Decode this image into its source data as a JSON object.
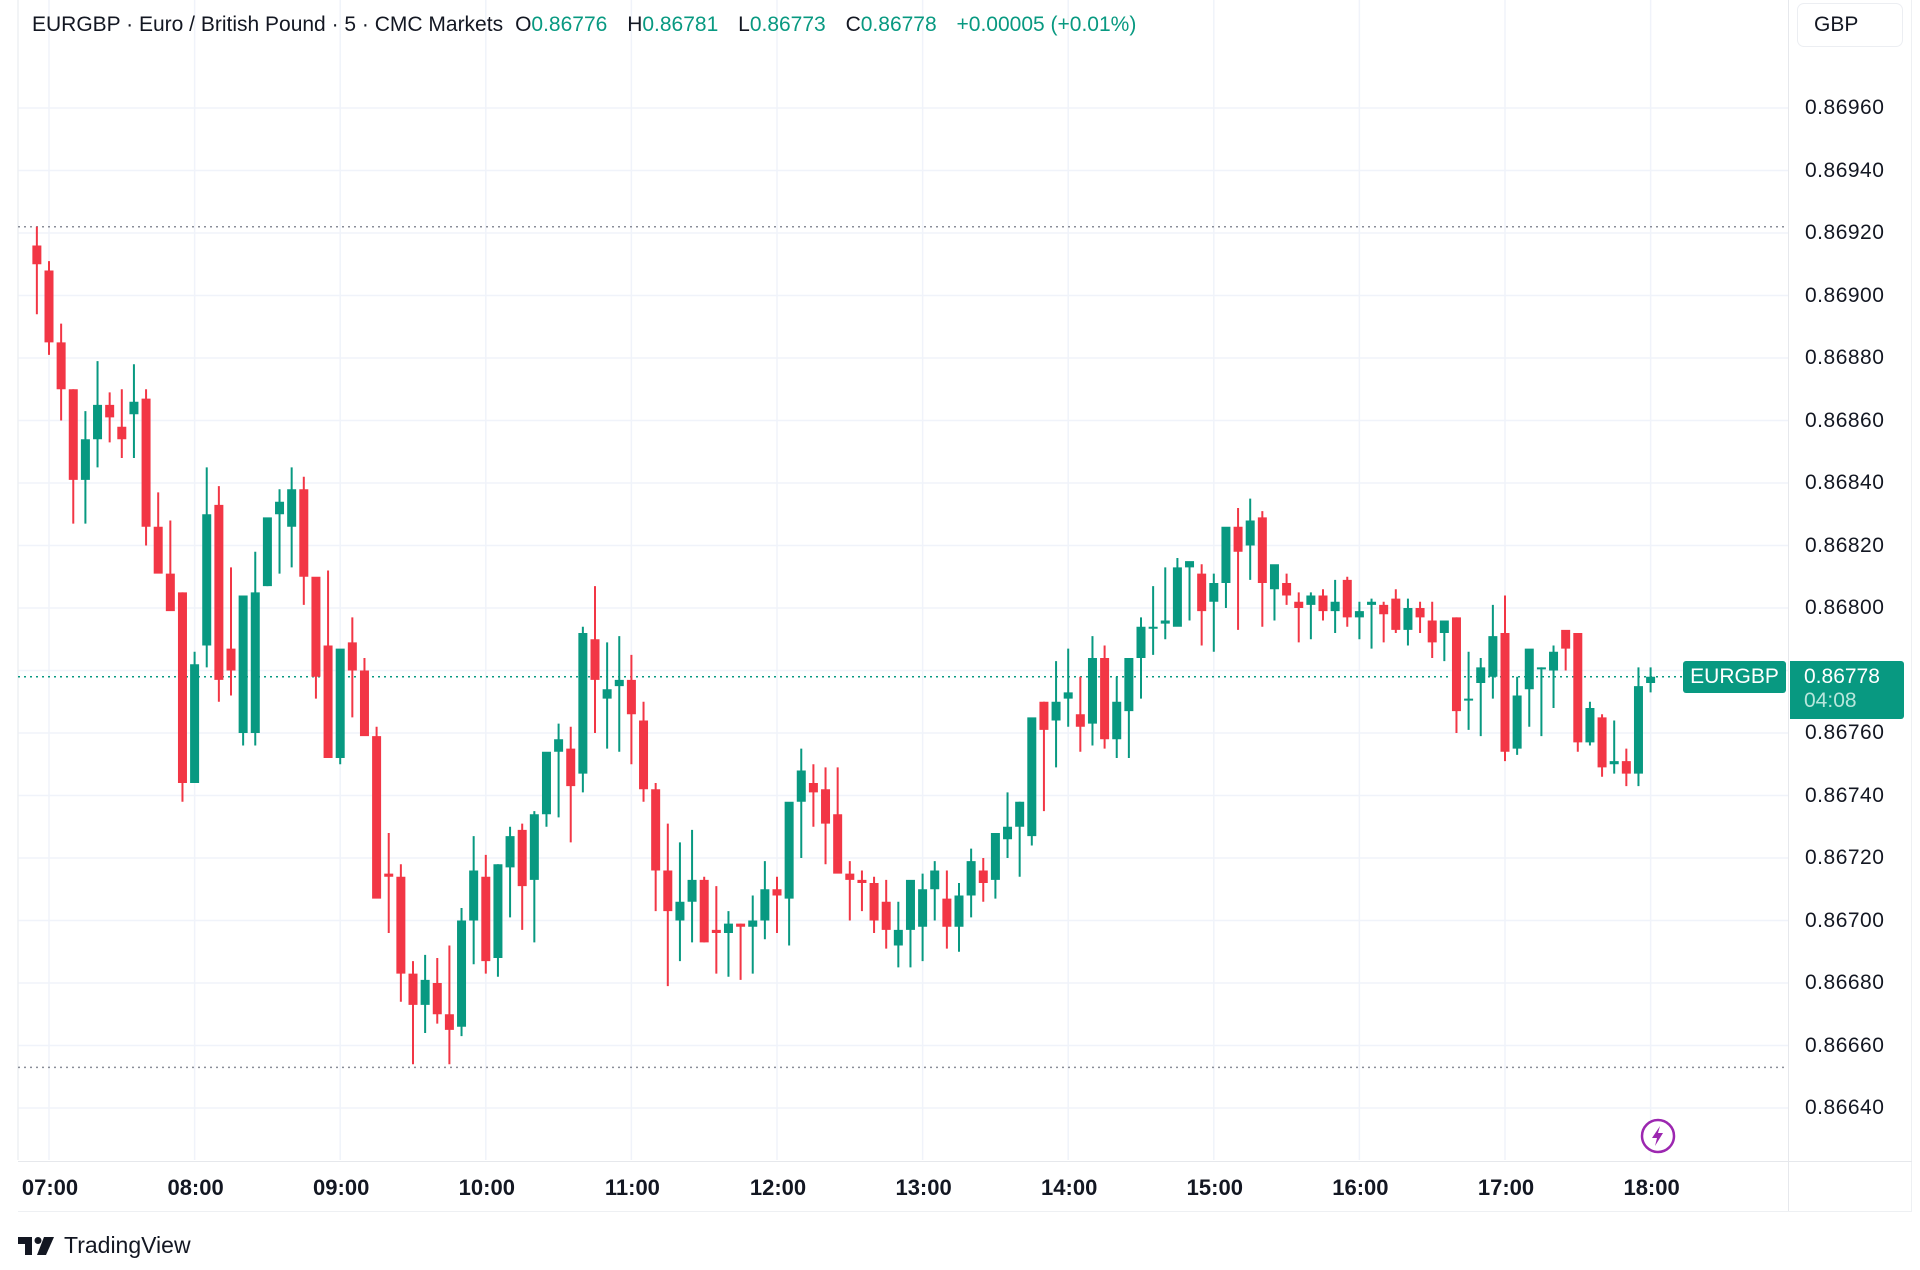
{
  "header": {
    "symbol_line": "EURGBP · Euro / British Pound · 5 · CMC Markets",
    "open_label": "O",
    "open": "0.86776",
    "high_label": "H",
    "high": "0.86781",
    "low_label": "L",
    "low": "0.86773",
    "close_label": "C",
    "close": "0.86778",
    "change": "+0.00005 (+0.01%)"
  },
  "currency_button": "GBP",
  "last_price_tag": {
    "symbol": "EURGBP",
    "price": "0.86778",
    "countdown": "04:08"
  },
  "branding": "TradingView",
  "colors": {
    "up": "#089981",
    "down": "#f23645",
    "grid": "#f0f3fa",
    "text": "#131722",
    "bolt": "#9c27b0"
  },
  "chart_data": {
    "type": "candlestick",
    "title": "EURGBP · Euro / British Pound · 5 · CMC Markets",
    "interval": "5 min",
    "xlabel": "",
    "ylabel": "GBP",
    "ylim": [
      0.8663,
      0.86975
    ],
    "y_ticks": [
      "0.86960",
      "0.86940",
      "0.86920",
      "0.86900",
      "0.86880",
      "0.86860",
      "0.86840",
      "0.86820",
      "0.86800",
      "0.86780",
      "0.86760",
      "0.86740",
      "0.86720",
      "0.86700",
      "0.86680",
      "0.86660",
      "0.86640"
    ],
    "x_ticks": [
      "07:00",
      "08:00",
      "09:00",
      "10:00",
      "11:00",
      "12:00",
      "13:00",
      "14:00",
      "15:00",
      "16:00",
      "17:00",
      "18:00"
    ],
    "grid": true,
    "session_high_line": 0.86922,
    "session_low_line": 0.86653,
    "last_price_line": 0.86778,
    "start_time": "06:55",
    "candles_ohlc": [
      [
        0.86916,
        0.86922,
        0.86894,
        0.8691
      ],
      [
        0.86908,
        0.86911,
        0.86881,
        0.86885
      ],
      [
        0.86885,
        0.86891,
        0.8686,
        0.8687
      ],
      [
        0.8687,
        0.8687,
        0.86827,
        0.86841
      ],
      [
        0.86841,
        0.86863,
        0.86827,
        0.86854
      ],
      [
        0.86854,
        0.86879,
        0.86845,
        0.86865
      ],
      [
        0.86865,
        0.86869,
        0.86853,
        0.86861
      ],
      [
        0.86858,
        0.8687,
        0.86848,
        0.86854
      ],
      [
        0.86862,
        0.86878,
        0.86848,
        0.86866
      ],
      [
        0.86867,
        0.8687,
        0.8682,
        0.86826
      ],
      [
        0.86826,
        0.86837,
        0.86815,
        0.86811
      ],
      [
        0.86811,
        0.86828,
        0.86801,
        0.86799
      ],
      [
        0.86805,
        0.86805,
        0.86738,
        0.86744
      ],
      [
        0.86744,
        0.86786,
        0.86744,
        0.86782
      ],
      [
        0.86788,
        0.86845,
        0.86781,
        0.8683
      ],
      [
        0.86833,
        0.86839,
        0.8677,
        0.86777
      ],
      [
        0.86787,
        0.86813,
        0.86772,
        0.8678
      ],
      [
        0.8676,
        0.868,
        0.86756,
        0.86804
      ],
      [
        0.8676,
        0.86818,
        0.86756,
        0.86805
      ],
      [
        0.86807,
        0.86824,
        0.86807,
        0.86829
      ],
      [
        0.8683,
        0.86838,
        0.86811,
        0.86834
      ],
      [
        0.86826,
        0.86845,
        0.86813,
        0.86838
      ],
      [
        0.86838,
        0.86842,
        0.86801,
        0.8681
      ],
      [
        0.8681,
        0.86802,
        0.86771,
        0.86778
      ],
      [
        0.86788,
        0.86812,
        0.86759,
        0.86752
      ],
      [
        0.86752,
        0.86786,
        0.8675,
        0.86787
      ],
      [
        0.86789,
        0.86797,
        0.86765,
        0.8678
      ],
      [
        0.8678,
        0.86784,
        0.86762,
        0.86759
      ],
      [
        0.86759,
        0.86762,
        0.86718,
        0.86707
      ],
      [
        0.86715,
        0.86728,
        0.86696,
        0.86714
      ],
      [
        0.86714,
        0.86718,
        0.86674,
        0.86683
      ],
      [
        0.86683,
        0.86687,
        0.86654,
        0.86673
      ],
      [
        0.86673,
        0.86689,
        0.86664,
        0.86681
      ],
      [
        0.8668,
        0.86688,
        0.86667,
        0.8667
      ],
      [
        0.8667,
        0.86692,
        0.86654,
        0.86665
      ],
      [
        0.86666,
        0.86704,
        0.86663,
        0.867
      ],
      [
        0.867,
        0.86727,
        0.86686,
        0.86716
      ],
      [
        0.86714,
        0.86721,
        0.86683,
        0.86687
      ],
      [
        0.86688,
        0.86718,
        0.86682,
        0.86718
      ],
      [
        0.86717,
        0.8673,
        0.86701,
        0.86727
      ],
      [
        0.86729,
        0.86731,
        0.86697,
        0.86711
      ],
      [
        0.86713,
        0.86735,
        0.86693,
        0.86734
      ],
      [
        0.86734,
        0.86749,
        0.8673,
        0.86754
      ],
      [
        0.86754,
        0.86763,
        0.86733,
        0.86758
      ],
      [
        0.86755,
        0.86762,
        0.86725,
        0.86743
      ],
      [
        0.86747,
        0.86794,
        0.86741,
        0.86792
      ],
      [
        0.8679,
        0.86807,
        0.8676,
        0.86777
      ],
      [
        0.86771,
        0.86789,
        0.86755,
        0.86774
      ],
      [
        0.86775,
        0.86791,
        0.86754,
        0.86777
      ],
      [
        0.86777,
        0.86785,
        0.8675,
        0.86766
      ],
      [
        0.86764,
        0.8677,
        0.86738,
        0.86742
      ],
      [
        0.86742,
        0.86744,
        0.86703,
        0.86716
      ],
      [
        0.86716,
        0.86731,
        0.86679,
        0.86703
      ],
      [
        0.867,
        0.86725,
        0.86687,
        0.86706
      ],
      [
        0.86706,
        0.86729,
        0.86693,
        0.86713
      ],
      [
        0.86713,
        0.86714,
        0.86693,
        0.86693
      ],
      [
        0.86697,
        0.86711,
        0.86683,
        0.86696
      ],
      [
        0.86696,
        0.86703,
        0.86682,
        0.86699
      ],
      [
        0.86699,
        0.86699,
        0.86681,
        0.86698
      ],
      [
        0.86698,
        0.86708,
        0.86683,
        0.867
      ],
      [
        0.867,
        0.86719,
        0.86694,
        0.8671
      ],
      [
        0.8671,
        0.86714,
        0.86696,
        0.86708
      ],
      [
        0.86707,
        0.86735,
        0.86692,
        0.86738
      ],
      [
        0.86738,
        0.86755,
        0.8672,
        0.86748
      ],
      [
        0.86744,
        0.8675,
        0.8673,
        0.86741
      ],
      [
        0.86742,
        0.86749,
        0.86718,
        0.86731
      ],
      [
        0.86734,
        0.86749,
        0.86724,
        0.86715
      ],
      [
        0.86715,
        0.86719,
        0.867,
        0.86713
      ],
      [
        0.86713,
        0.86716,
        0.86703,
        0.86712
      ],
      [
        0.86712,
        0.86714,
        0.86696,
        0.867
      ],
      [
        0.86706,
        0.86713,
        0.86691,
        0.86697
      ],
      [
        0.86692,
        0.86706,
        0.86685,
        0.86697
      ],
      [
        0.86697,
        0.86703,
        0.86685,
        0.86713
      ],
      [
        0.86698,
        0.86715,
        0.86687,
        0.8671
      ],
      [
        0.8671,
        0.86719,
        0.867,
        0.86716
      ],
      [
        0.86707,
        0.86716,
        0.86691,
        0.86698
      ],
      [
        0.86698,
        0.86712,
        0.8669,
        0.86708
      ],
      [
        0.86708,
        0.86723,
        0.86701,
        0.86719
      ],
      [
        0.86716,
        0.8672,
        0.86706,
        0.86712
      ],
      [
        0.86713,
        0.86725,
        0.86707,
        0.86728
      ],
      [
        0.86726,
        0.86741,
        0.8672,
        0.8673
      ],
      [
        0.8673,
        0.86738,
        0.86714,
        0.86738
      ],
      [
        0.86727,
        0.86754,
        0.86724,
        0.86765
      ],
      [
        0.8677,
        0.8677,
        0.86735,
        0.86761
      ],
      [
        0.86764,
        0.86783,
        0.86749,
        0.8677
      ],
      [
        0.86771,
        0.86787,
        0.86762,
        0.86773
      ],
      [
        0.86766,
        0.86778,
        0.86754,
        0.86762
      ],
      [
        0.86763,
        0.86791,
        0.86756,
        0.86784
      ],
      [
        0.86784,
        0.86788,
        0.86755,
        0.86758
      ],
      [
        0.86758,
        0.86778,
        0.86752,
        0.8677
      ],
      [
        0.86767,
        0.86779,
        0.86752,
        0.86784
      ],
      [
        0.86784,
        0.86797,
        0.86771,
        0.86794
      ],
      [
        0.86794,
        0.86807,
        0.86785,
        0.86794
      ],
      [
        0.86795,
        0.86813,
        0.8679,
        0.86796
      ],
      [
        0.86794,
        0.86816,
        0.86796,
        0.86813
      ],
      [
        0.86813,
        0.86814,
        0.86796,
        0.86815
      ],
      [
        0.86811,
        0.86814,
        0.86788,
        0.86799
      ],
      [
        0.86802,
        0.86811,
        0.86786,
        0.86808
      ],
      [
        0.86808,
        0.86823,
        0.868,
        0.86826
      ],
      [
        0.86826,
        0.86832,
        0.86793,
        0.86818
      ],
      [
        0.8682,
        0.86835,
        0.86809,
        0.86828
      ],
      [
        0.86829,
        0.86831,
        0.86794,
        0.86808
      ],
      [
        0.86806,
        0.86808,
        0.86796,
        0.86814
      ],
      [
        0.86808,
        0.86811,
        0.86801,
        0.86804
      ],
      [
        0.86802,
        0.86805,
        0.86789,
        0.868
      ],
      [
        0.86801,
        0.86805,
        0.8679,
        0.86804
      ],
      [
        0.86804,
        0.86806,
        0.86796,
        0.86799
      ],
      [
        0.86799,
        0.86809,
        0.86792,
        0.86802
      ],
      [
        0.86809,
        0.8681,
        0.86794,
        0.86797
      ],
      [
        0.86797,
        0.86802,
        0.8679,
        0.86799
      ],
      [
        0.86801,
        0.86803,
        0.86787,
        0.86802
      ],
      [
        0.86801,
        0.86802,
        0.86789,
        0.86798
      ],
      [
        0.86803,
        0.86806,
        0.86792,
        0.86793
      ],
      [
        0.86793,
        0.86803,
        0.86788,
        0.868
      ],
      [
        0.868,
        0.86802,
        0.86792,
        0.86797
      ],
      [
        0.86796,
        0.86802,
        0.86784,
        0.86789
      ],
      [
        0.86792,
        0.86795,
        0.86783,
        0.86796
      ],
      [
        0.86797,
        0.86797,
        0.8676,
        0.86767
      ],
      [
        0.86771,
        0.86786,
        0.86761,
        0.86771
      ],
      [
        0.86776,
        0.86784,
        0.86759,
        0.86781
      ],
      [
        0.86778,
        0.86801,
        0.86771,
        0.86791
      ],
      [
        0.86792,
        0.86804,
        0.86751,
        0.86754
      ],
      [
        0.86755,
        0.86778,
        0.86753,
        0.86772
      ],
      [
        0.86774,
        0.86776,
        0.86762,
        0.86787
      ],
      [
        0.86781,
        0.86781,
        0.86759,
        0.86781
      ],
      [
        0.8678,
        0.86788,
        0.86768,
        0.86786
      ],
      [
        0.86793,
        0.86792,
        0.8678,
        0.86787
      ],
      [
        0.86792,
        0.8679,
        0.86754,
        0.86757
      ],
      [
        0.86757,
        0.8677,
        0.86756,
        0.86768
      ],
      [
        0.86765,
        0.86766,
        0.86746,
        0.86749
      ],
      [
        0.8675,
        0.86764,
        0.86747,
        0.86751
      ],
      [
        0.86751,
        0.86755,
        0.86743,
        0.86747
      ],
      [
        0.86747,
        0.86781,
        0.86743,
        0.86775
      ],
      [
        0.86776,
        0.86781,
        0.86773,
        0.86778
      ]
    ]
  }
}
